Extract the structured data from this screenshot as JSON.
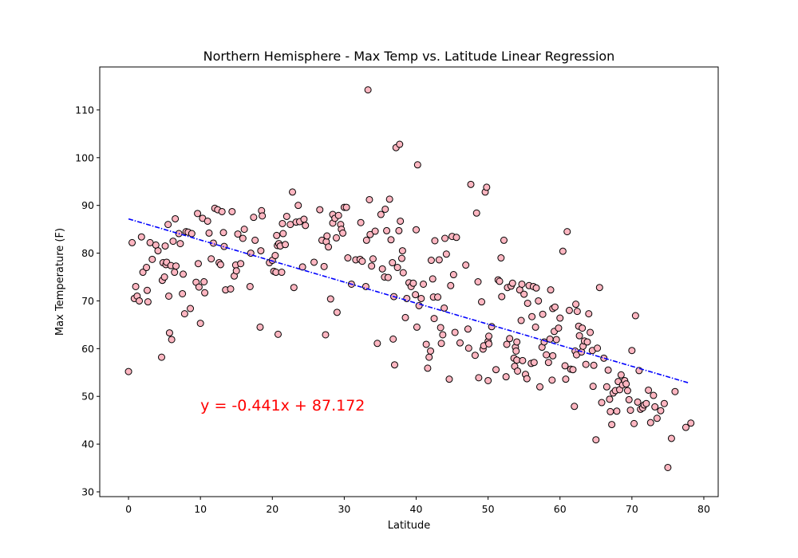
{
  "chart_data": {
    "type": "scatter",
    "title": "Northern Hemisphere - Max Temp vs. Latitude Linear Regression",
    "xlabel": "Latitude",
    "ylabel": "Max Temperature (F)",
    "xlim": [
      -4,
      82
    ],
    "ylim": [
      29,
      119
    ],
    "xticks": [
      0,
      10,
      20,
      30,
      40,
      50,
      60,
      70,
      80
    ],
    "yticks": [
      30,
      40,
      50,
      60,
      70,
      80,
      90,
      100,
      110
    ],
    "grid": false,
    "marker_color": "#ffb6c1",
    "marker_edge": "#000000",
    "regression": {
      "slope": -0.441,
      "intercept": 87.172,
      "x_range": [
        0,
        78
      ],
      "equation": "y = -0.441x + 87.172",
      "equation_pos": [
        10,
        48
      ],
      "color": "#0000ff",
      "equation_color": "#ff0000"
    },
    "points": [
      [
        0,
        55.2
      ],
      [
        0.5,
        82.2
      ],
      [
        0.8,
        70.5
      ],
      [
        1,
        73
      ],
      [
        1.2,
        71
      ],
      [
        1.5,
        70
      ],
      [
        1.8,
        83.4
      ],
      [
        2,
        76
      ],
      [
        2.5,
        77
      ],
      [
        2.6,
        72.2
      ],
      [
        2.7,
        69.8
      ],
      [
        3,
        82.2
      ],
      [
        3.3,
        78.7
      ],
      [
        3.8,
        81.7
      ],
      [
        4.1,
        80.5
      ],
      [
        4.6,
        58.2
      ],
      [
        4.7,
        74.3
      ],
      [
        4.8,
        78
      ],
      [
        5,
        75
      ],
      [
        5.1,
        81.5
      ],
      [
        5.2,
        77.6
      ],
      [
        5.3,
        78.1
      ],
      [
        5.5,
        86
      ],
      [
        5.6,
        71
      ],
      [
        5.7,
        63.3
      ],
      [
        5.9,
        77.4
      ],
      [
        6,
        61.9
      ],
      [
        6.2,
        82.5
      ],
      [
        6.4,
        76
      ],
      [
        6.5,
        87.2
      ],
      [
        6.6,
        77.3
      ],
      [
        7,
        84.1
      ],
      [
        7.2,
        82
      ],
      [
        7.5,
        71.5
      ],
      [
        7.6,
        75.6
      ],
      [
        7.8,
        67.3
      ],
      [
        8,
        84.5
      ],
      [
        8.3,
        84.4
      ],
      [
        8.6,
        68.4
      ],
      [
        8.8,
        84.1
      ],
      [
        9.4,
        73.9
      ],
      [
        9.6,
        88.3
      ],
      [
        9.7,
        77.8
      ],
      [
        9.8,
        72.9
      ],
      [
        10,
        65.3
      ],
      [
        10.3,
        87.3
      ],
      [
        10.5,
        74
      ],
      [
        10.6,
        71.7
      ],
      [
        11,
        86.7
      ],
      [
        11.2,
        84.2
      ],
      [
        11.5,
        78.8
      ],
      [
        11.8,
        82.1
      ],
      [
        12,
        89.4
      ],
      [
        12.4,
        89.1
      ],
      [
        12.6,
        78
      ],
      [
        12.8,
        77.6
      ],
      [
        13,
        88.7
      ],
      [
        13.2,
        84.3
      ],
      [
        13.3,
        81.4
      ],
      [
        13.5,
        72.3
      ],
      [
        14.2,
        72.5
      ],
      [
        14.4,
        88.7
      ],
      [
        14.7,
        75.2
      ],
      [
        14.9,
        77.5
      ],
      [
        15,
        76.3
      ],
      [
        15.2,
        84
      ],
      [
        15.6,
        77.8
      ],
      [
        15.9,
        83.1
      ],
      [
        16.1,
        85
      ],
      [
        16.9,
        73
      ],
      [
        17,
        80
      ],
      [
        17.4,
        87.5
      ],
      [
        17.6,
        82.7
      ],
      [
        18.3,
        64.5
      ],
      [
        18.4,
        80.5
      ],
      [
        18.5,
        88.9
      ],
      [
        18.6,
        87.8
      ],
      [
        19.6,
        78
      ],
      [
        20,
        78.5
      ],
      [
        20.2,
        76.2
      ],
      [
        20.4,
        79.5
      ],
      [
        20.5,
        76
      ],
      [
        20.6,
        83.7
      ],
      [
        20.7,
        81.6
      ],
      [
        20.8,
        63
      ],
      [
        20.9,
        82
      ],
      [
        21.1,
        81.5
      ],
      [
        21.3,
        76
      ],
      [
        21.4,
        86.2
      ],
      [
        21.5,
        84.1
      ],
      [
        21.8,
        81.8
      ],
      [
        22,
        87.7
      ],
      [
        22.5,
        86
      ],
      [
        22.8,
        92.8
      ],
      [
        23,
        72.8
      ],
      [
        23.3,
        86.5
      ],
      [
        23.6,
        90
      ],
      [
        23.8,
        86.6
      ],
      [
        24.2,
        77.1
      ],
      [
        24.4,
        87.1
      ],
      [
        24.6,
        85.8
      ],
      [
        25.8,
        78.1
      ],
      [
        26.6,
        89.1
      ],
      [
        26.9,
        82.7
      ],
      [
        27.2,
        77.2
      ],
      [
        27.4,
        62.9
      ],
      [
        27.5,
        82.4
      ],
      [
        27.6,
        83.6
      ],
      [
        27.8,
        81.3
      ],
      [
        28.1,
        70.4
      ],
      [
        28.4,
        86.3
      ],
      [
        28.4,
        88.1
      ],
      [
        28.7,
        87.3
      ],
      [
        28.9,
        83.2
      ],
      [
        29,
        67.6
      ],
      [
        29.2,
        87.9
      ],
      [
        29.5,
        86
      ],
      [
        29.6,
        85
      ],
      [
        29.8,
        84.2
      ],
      [
        30,
        89.6
      ],
      [
        30.3,
        89.6
      ],
      [
        30.5,
        79
      ],
      [
        31,
        73.5
      ],
      [
        31.6,
        78.6
      ],
      [
        32.2,
        78.7
      ],
      [
        32.3,
        86.4
      ],
      [
        32.5,
        78.3
      ],
      [
        33,
        73
      ],
      [
        33.1,
        82.7
      ],
      [
        33.3,
        114.2
      ],
      [
        33.5,
        91.2
      ],
      [
        33.6,
        83.9
      ],
      [
        33.8,
        77.3
      ],
      [
        34,
        78.8
      ],
      [
        34.3,
        84.6
      ],
      [
        34.6,
        61.1
      ],
      [
        35.1,
        88.1
      ],
      [
        35.3,
        76.7
      ],
      [
        35.6,
        75
      ],
      [
        35.7,
        89.2
      ],
      [
        35.9,
        84.7
      ],
      [
        36.1,
        74.9
      ],
      [
        36.3,
        91.3
      ],
      [
        36.5,
        82.8
      ],
      [
        36.7,
        78
      ],
      [
        36.8,
        62
      ],
      [
        36.9,
        70.9
      ],
      [
        37,
        56.6
      ],
      [
        37.2,
        102.1
      ],
      [
        37.4,
        77
      ],
      [
        37.6,
        84.7
      ],
      [
        37.7,
        102.8
      ],
      [
        37.8,
        86.7
      ],
      [
        38,
        78.9
      ],
      [
        38.1,
        80.5
      ],
      [
        38.2,
        75.9
      ],
      [
        38.5,
        66.5
      ],
      [
        38.7,
        70.5
      ],
      [
        39,
        73.8
      ],
      [
        39.3,
        73
      ],
      [
        39.6,
        73.7
      ],
      [
        39.9,
        71.3
      ],
      [
        40,
        84.9
      ],
      [
        40.1,
        64.5
      ],
      [
        40.2,
        98.5
      ],
      [
        40.4,
        69
      ],
      [
        40.7,
        70.5
      ],
      [
        41,
        73.5
      ],
      [
        41.4,
        60.9
      ],
      [
        41.6,
        55.9
      ],
      [
        41.8,
        58.2
      ],
      [
        42,
        59.5
      ],
      [
        42.1,
        78.5
      ],
      [
        42.3,
        74.6
      ],
      [
        42.4,
        70.8
      ],
      [
        42.5,
        66.3
      ],
      [
        42.6,
        82.6
      ],
      [
        43,
        70.8
      ],
      [
        43.2,
        78.6
      ],
      [
        43.4,
        64.4
      ],
      [
        43.5,
        61.1
      ],
      [
        43.7,
        62.9
      ],
      [
        43.9,
        68.5
      ],
      [
        44,
        83.1
      ],
      [
        44.2,
        79.8
      ],
      [
        44.6,
        53.6
      ],
      [
        44.8,
        73.2
      ],
      [
        45,
        83.5
      ],
      [
        45.2,
        75.5
      ],
      [
        45.4,
        63.4
      ],
      [
        45.6,
        83.3
      ],
      [
        46.1,
        61.2
      ],
      [
        46.9,
        77.5
      ],
      [
        47.2,
        64.1
      ],
      [
        47.3,
        60.1
      ],
      [
        47.6,
        94.4
      ],
      [
        48.2,
        58.6
      ],
      [
        48.4,
        88.4
      ],
      [
        48.6,
        74
      ],
      [
        48.7,
        53.9
      ],
      [
        49.1,
        69.8
      ],
      [
        49.3,
        59.9
      ],
      [
        49.4,
        60.6
      ],
      [
        49.6,
        92.8
      ],
      [
        49.8,
        93.8
      ],
      [
        50,
        53.3
      ],
      [
        50,
        61.5
      ],
      [
        50.1,
        62.6
      ],
      [
        50.1,
        61
      ],
      [
        50.5,
        64.6
      ],
      [
        51.1,
        55.6
      ],
      [
        51.4,
        74.4
      ],
      [
        51.6,
        74.1
      ],
      [
        51.8,
        79
      ],
      [
        51.9,
        70.9
      ],
      [
        52.2,
        82.7
      ],
      [
        52.5,
        54.1
      ],
      [
        52.6,
        60.9
      ],
      [
        52.7,
        72.8
      ],
      [
        53,
        62.1
      ],
      [
        53.2,
        73.1
      ],
      [
        53.4,
        73.7
      ],
      [
        53.6,
        58
      ],
      [
        53.7,
        56.3
      ],
      [
        53.8,
        60.3
      ],
      [
        53.9,
        59.5
      ],
      [
        54,
        61.4
      ],
      [
        54,
        57.6
      ],
      [
        54.1,
        55.3
      ],
      [
        54.4,
        72.3
      ],
      [
        54.6,
        65.9
      ],
      [
        54.7,
        73.5
      ],
      [
        54.8,
        57.5
      ],
      [
        55,
        71.4
      ],
      [
        55.2,
        54.6
      ],
      [
        55.4,
        53.7
      ],
      [
        55.5,
        69.5
      ],
      [
        55.7,
        73.2
      ],
      [
        56,
        56.9
      ],
      [
        56.1,
        66.7
      ],
      [
        56.3,
        73
      ],
      [
        56.4,
        57.1
      ],
      [
        56.6,
        64.5
      ],
      [
        56.7,
        72.7
      ],
      [
        57,
        70
      ],
      [
        57.2,
        52
      ],
      [
        57.5,
        60.3
      ],
      [
        57.6,
        67.2
      ],
      [
        57.8,
        61.4
      ],
      [
        58.1,
        58.7
      ],
      [
        58.4,
        57.1
      ],
      [
        58.6,
        62
      ],
      [
        58.7,
        72.3
      ],
      [
        58.9,
        53.4
      ],
      [
        59,
        68.4
      ],
      [
        59,
        58.5
      ],
      [
        59.2,
        63.6
      ],
      [
        59.3,
        68.7
      ],
      [
        59.5,
        61.9
      ],
      [
        59.8,
        64.3
      ],
      [
        60,
        66.4
      ],
      [
        60.4,
        80.4
      ],
      [
        60.7,
        56.4
      ],
      [
        60.8,
        53.6
      ],
      [
        61,
        84.5
      ],
      [
        61.3,
        68
      ],
      [
        61.5,
        55.7
      ],
      [
        61.8,
        55.6
      ],
      [
        62,
        47.9
      ],
      [
        62.1,
        59.5
      ],
      [
        62.2,
        69.3
      ],
      [
        62.3,
        58.7
      ],
      [
        62.4,
        67.8
      ],
      [
        62.6,
        64.7
      ],
      [
        62.7,
        62.7
      ],
      [
        63,
        59.3
      ],
      [
        63.1,
        64.3
      ],
      [
        63.2,
        60.5
      ],
      [
        63.4,
        61.6
      ],
      [
        63.6,
        56.7
      ],
      [
        63.8,
        61.4
      ],
      [
        64,
        67.3
      ],
      [
        64.2,
        63.4
      ],
      [
        64.5,
        59.6
      ],
      [
        64.6,
        52.1
      ],
      [
        64.7,
        56.5
      ],
      [
        65,
        40.9
      ],
      [
        65.2,
        60.1
      ],
      [
        65.5,
        72.8
      ],
      [
        65.8,
        48.7
      ],
      [
        66.1,
        58
      ],
      [
        66.5,
        52
      ],
      [
        66.7,
        55.5
      ],
      [
        66.9,
        49.4
      ],
      [
        67,
        46.8
      ],
      [
        67.2,
        44.1
      ],
      [
        67.4,
        50.7
      ],
      [
        67.7,
        51.2
      ],
      [
        67.9,
        46.9
      ],
      [
        68.1,
        53.1
      ],
      [
        68.3,
        51.4
      ],
      [
        68.5,
        54.5
      ],
      [
        68.7,
        52.4
      ],
      [
        69,
        53.3
      ],
      [
        69.2,
        52.6
      ],
      [
        69.4,
        51.2
      ],
      [
        69.6,
        49.3
      ],
      [
        69.8,
        47.1
      ],
      [
        70,
        59.6
      ],
      [
        70.3,
        44.3
      ],
      [
        70.5,
        66.9
      ],
      [
        70.8,
        48.8
      ],
      [
        71,
        55.4
      ],
      [
        71.2,
        47.3
      ],
      [
        71.5,
        47.6
      ],
      [
        71.7,
        48.2
      ],
      [
        72,
        48.5
      ],
      [
        72.3,
        51.3
      ],
      [
        72.6,
        44.5
      ],
      [
        73,
        50.2
      ],
      [
        73.2,
        47.8
      ],
      [
        73.5,
        45.4
      ],
      [
        74,
        47
      ],
      [
        74.5,
        48.5
      ],
      [
        75,
        35.1
      ],
      [
        75.5,
        41.2
      ],
      [
        76,
        51
      ],
      [
        77.5,
        43.5
      ],
      [
        78.2,
        44.4
      ]
    ]
  }
}
